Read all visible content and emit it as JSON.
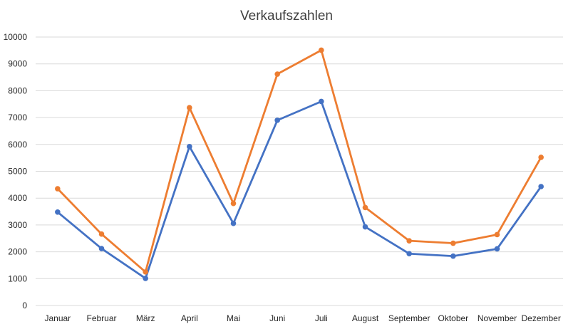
{
  "chart_data": {
    "type": "line",
    "title": "Verkaufszahlen",
    "xlabel": "",
    "ylabel": "",
    "categories": [
      "Januar",
      "Februar",
      "März",
      "April",
      "Mai",
      "Juni",
      "Juli",
      "August",
      "September",
      "Oktober",
      "November",
      "Dezember"
    ],
    "yticks": [
      "0",
      "1000",
      "2000",
      "3000",
      "4000",
      "5000",
      "6000",
      "7000",
      "8000",
      "9000",
      "10000"
    ],
    "ylim": [
      0,
      10000
    ],
    "grid": true,
    "legend": "none",
    "series": [
      {
        "color": "#4472c4",
        "values": [
          3480,
          2120,
          1010,
          5920,
          3060,
          6900,
          7600,
          2930,
          1930,
          1840,
          2110,
          4430
        ]
      },
      {
        "color": "#ed7d31",
        "values": [
          4350,
          2660,
          1250,
          7370,
          3800,
          8620,
          9510,
          3650,
          2410,
          2320,
          2640,
          5520
        ]
      }
    ]
  }
}
